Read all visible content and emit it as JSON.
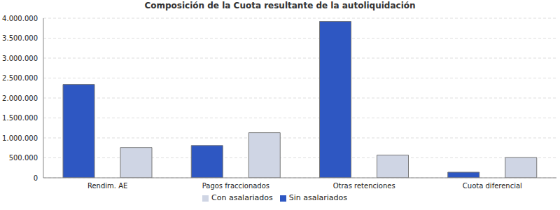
{
  "chart_data": {
    "type": "bar",
    "title": "Composición de la Cuota resultante de la autoliquidación",
    "categories": [
      "Rendim. AE",
      "Pagos fraccionados",
      "Otras retenciones",
      "Cuota diferencial"
    ],
    "series": [
      {
        "name": "Sin asalariados",
        "color": "#2e57c2",
        "values": [
          2340000,
          810000,
          3920000,
          140000
        ]
      },
      {
        "name": "Con asalariados",
        "color": "#cfd5e4",
        "values": [
          760000,
          1130000,
          570000,
          510000
        ]
      }
    ],
    "ylim": [
      0,
      4000000
    ],
    "yticks": [
      {
        "value": 0,
        "label": "0"
      },
      {
        "value": 500000,
        "label": "500.000"
      },
      {
        "value": 1000000,
        "label": "1.000.000"
      },
      {
        "value": 1500000,
        "label": "1.500.000"
      },
      {
        "value": 2000000,
        "label": "2.000.000"
      },
      {
        "value": 2500000,
        "label": "2.500.000"
      },
      {
        "value": 3000000,
        "label": "3.000.000"
      },
      {
        "value": 3500000,
        "label": "3.500.000"
      },
      {
        "value": 4000000,
        "label": "4.000.000"
      }
    ],
    "grid": true,
    "legend": "bottom"
  }
}
